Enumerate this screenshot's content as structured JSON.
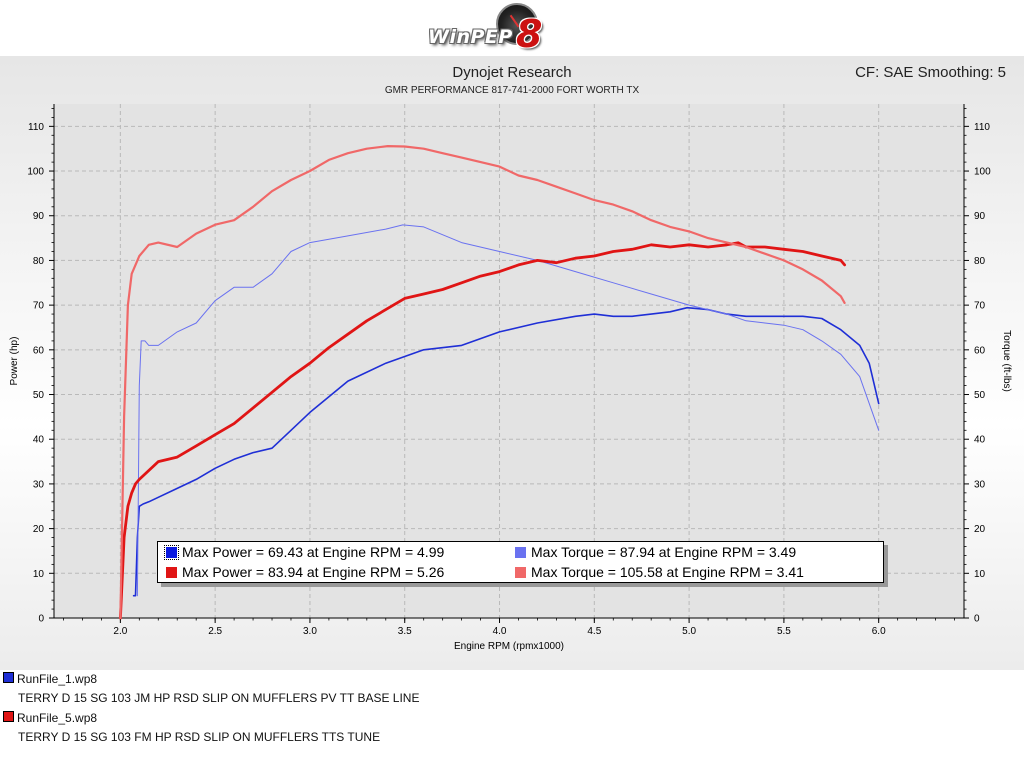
{
  "header": {
    "logo_text": "WinPEP",
    "logo_number": "8",
    "company": "Dynojet Research",
    "subtitle": "GMR PERFORMANCE 817-741-2000  FORT WORTH TX",
    "correction": "CF: SAE Smoothing: 5"
  },
  "colors": {
    "run1_power": "#1f2fd6",
    "run1_torque": "#6a72f0",
    "run5_power": "#e01515",
    "run5_torque": "#f06868",
    "plot_bg": "#e3e3e3",
    "grid": "#b9b9b9"
  },
  "legend": {
    "items": [
      {
        "text": "Max Power = 69.43 at Engine RPM = 4.99",
        "color": "#0a1ae0"
      },
      {
        "text": "Max Torque = 87.94 at Engine RPM = 3.49",
        "color": "#6a72f0"
      },
      {
        "text": "Max Power = 83.94 at Engine RPM = 5.26",
        "color": "#e01515"
      },
      {
        "text": "Max Torque = 105.58 at Engine RPM = 3.41",
        "color": "#f06868"
      }
    ]
  },
  "runs": [
    {
      "name": "RunFile_1.wp8",
      "description": "TERRY D 15 SG 103 JM HP RSD SLIP ON MUFFLERS PV TT BASE LINE",
      "color": "#1f2fd6"
    },
    {
      "name": "RunFile_5.wp8",
      "description": "TERRY D 15 SG 103 FM HP RSD SLIP ON MUFFLERS TTS TUNE",
      "color": "#e01515"
    }
  ],
  "chart_data": {
    "type": "line",
    "title": "Dynojet Research",
    "xlabel": "Engine RPM (rpmx1000)",
    "ylabel": "Power (hp)",
    "y2label": "Torque (ft-lbs)",
    "xlim": [
      1.65,
      6.45
    ],
    "ylim": [
      0,
      115
    ],
    "xticks": [
      "2.0",
      "2.5",
      "3.0",
      "3.5",
      "4.0",
      "4.5",
      "5.0",
      "5.5",
      "6.0"
    ],
    "yticks": [
      "0",
      "10",
      "20",
      "30",
      "40",
      "50",
      "60",
      "70",
      "80",
      "90",
      "100",
      "110"
    ],
    "grid": true,
    "series": [
      {
        "name": "RunFile_1.wp8 Power",
        "axis": "left",
        "x": [
          2.07,
          2.08,
          2.09,
          2.1,
          2.12,
          2.15,
          2.2,
          2.3,
          2.4,
          2.5,
          2.6,
          2.7,
          2.8,
          2.9,
          3.0,
          3.2,
          3.4,
          3.5,
          3.6,
          3.8,
          4.0,
          4.2,
          4.4,
          4.5,
          4.6,
          4.7,
          4.8,
          4.9,
          4.99,
          5.1,
          5.2,
          5.3,
          5.4,
          5.5,
          5.6,
          5.7,
          5.8,
          5.9,
          5.95,
          6.0
        ],
        "y": [
          5,
          5,
          18,
          25,
          25.5,
          26,
          27,
          29,
          31,
          33.5,
          35.5,
          37,
          38,
          42,
          46,
          53,
          57,
          58.5,
          60,
          61,
          64,
          66,
          67.5,
          68,
          67.5,
          67.5,
          68,
          68.5,
          69.43,
          69,
          68,
          67.5,
          67.5,
          67.5,
          67.5,
          67,
          64.5,
          61,
          57,
          48
        ]
      },
      {
        "name": "RunFile_1.wp8 Torque",
        "axis": "right",
        "x": [
          2.09,
          2.1,
          2.11,
          2.13,
          2.15,
          2.2,
          2.3,
          2.4,
          2.5,
          2.6,
          2.7,
          2.8,
          2.9,
          3.0,
          3.2,
          3.4,
          3.49,
          3.6,
          3.8,
          4.0,
          4.2,
          4.4,
          4.6,
          4.8,
          5.0,
          5.2,
          5.3,
          5.4,
          5.5,
          5.6,
          5.7,
          5.8,
          5.9,
          6.0
        ],
        "y": [
          5,
          52,
          62,
          62,
          61,
          61,
          64,
          66,
          71,
          74,
          74,
          77,
          82,
          84,
          85.5,
          87,
          87.94,
          87.5,
          84,
          82,
          80,
          77.5,
          75,
          72.5,
          70,
          68,
          66.5,
          66,
          65.5,
          64.5,
          62,
          59,
          54,
          42
        ]
      },
      {
        "name": "RunFile_5.wp8 Power",
        "axis": "left",
        "x": [
          2.0,
          2.02,
          2.04,
          2.06,
          2.08,
          2.1,
          2.15,
          2.2,
          2.3,
          2.4,
          2.5,
          2.6,
          2.7,
          2.8,
          2.9,
          3.0,
          3.1,
          3.2,
          3.3,
          3.4,
          3.5,
          3.6,
          3.7,
          3.8,
          3.9,
          4.0,
          4.1,
          4.2,
          4.3,
          4.4,
          4.5,
          4.6,
          4.7,
          4.8,
          4.9,
          5.0,
          5.1,
          5.2,
          5.26,
          5.3,
          5.4,
          5.5,
          5.6,
          5.7,
          5.8,
          5.82
        ],
        "y": [
          0,
          18,
          25,
          28,
          30,
          31,
          33,
          35,
          36,
          38.5,
          41,
          43.5,
          47,
          50.5,
          54,
          57,
          60.5,
          63.5,
          66.5,
          69,
          71.5,
          72.5,
          73.5,
          75,
          76.5,
          77.5,
          79,
          80,
          79.5,
          80.5,
          81,
          82,
          82.5,
          83.5,
          83,
          83.5,
          83,
          83.5,
          83.94,
          83,
          83,
          82.5,
          82,
          81,
          80,
          79
        ]
      },
      {
        "name": "RunFile_5.wp8 Torque",
        "axis": "right",
        "x": [
          2.0,
          2.02,
          2.04,
          2.06,
          2.08,
          2.1,
          2.15,
          2.2,
          2.3,
          2.4,
          2.5,
          2.6,
          2.7,
          2.8,
          2.9,
          3.0,
          3.1,
          3.2,
          3.3,
          3.41,
          3.5,
          3.6,
          3.7,
          3.8,
          3.9,
          4.0,
          4.1,
          4.2,
          4.3,
          4.4,
          4.5,
          4.6,
          4.7,
          4.8,
          4.9,
          5.0,
          5.1,
          5.2,
          5.3,
          5.4,
          5.5,
          5.6,
          5.7,
          5.8,
          5.82
        ],
        "y": [
          0,
          45,
          70,
          77,
          79,
          81,
          83.5,
          84,
          83,
          86,
          88,
          89,
          92,
          95.5,
          98,
          100,
          102.5,
          104,
          105,
          105.58,
          105.5,
          105,
          104,
          103,
          102,
          101,
          99,
          98,
          96.5,
          95,
          93.5,
          92.5,
          91,
          89,
          87.5,
          86.5,
          85,
          84,
          83,
          81.5,
          80,
          78,
          75.5,
          72,
          70.5
        ]
      }
    ]
  }
}
